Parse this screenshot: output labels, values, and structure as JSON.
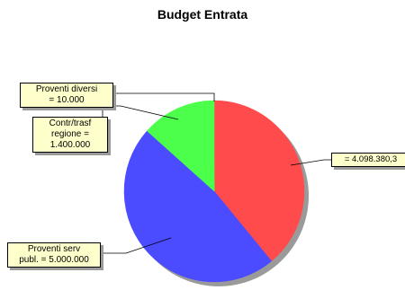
{
  "chart_data": {
    "type": "pie",
    "title": "Budget Entrata",
    "slices": [
      {
        "label": "",
        "value": 4098380.3,
        "display": "= 4.098.380,3",
        "color": "#ff4b4b"
      },
      {
        "label": "Proventi serv publ.",
        "value": 5000000,
        "display": "Proventi serv publ. = 5.000.000",
        "color": "#4b4bff"
      },
      {
        "label": "Contr/trasf regione",
        "value": 1400000,
        "display": "Contr/trasf regione = 1.400.000",
        "color": "#4bff4b"
      },
      {
        "label": "Proventi diversi",
        "value": 10000,
        "display": "Proventi diversi = 10.000",
        "color": "#4bff4b"
      }
    ]
  },
  "labels": {
    "slice0": "= 4.098.380,3",
    "slice1_line1": "Proventi serv",
    "slice1_line2": "publ. = 5.000.000",
    "slice2_line1": "Contr/trasf",
    "slice2_line2": "regione =",
    "slice2_line3": "1.400.000",
    "slice3_line1": "Proventi diversi",
    "slice3_line2": "= 10.000"
  }
}
